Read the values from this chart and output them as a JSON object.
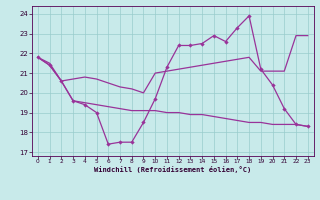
{
  "bg_color": "#c8eaea",
  "line_color": "#993399",
  "grid_color": "#99cccc",
  "xlim": [
    -0.5,
    23.5
  ],
  "ylim": [
    16.8,
    24.4
  ],
  "yticks": [
    17,
    18,
    19,
    20,
    21,
    22,
    23,
    24
  ],
  "xticks": [
    0,
    1,
    2,
    3,
    4,
    5,
    6,
    7,
    8,
    9,
    10,
    11,
    12,
    13,
    14,
    15,
    16,
    17,
    18,
    19,
    20,
    21,
    22,
    23
  ],
  "xlabel": "Windchill (Refroidissement éolien,°C)",
  "line1_x": [
    0,
    1,
    2,
    3,
    4,
    5,
    6,
    7,
    8,
    9,
    10,
    11,
    12,
    13,
    14,
    15,
    16,
    17,
    18,
    19,
    20,
    21,
    22,
    23
  ],
  "line1_y": [
    21.8,
    21.5,
    20.6,
    20.7,
    20.8,
    20.7,
    20.5,
    20.3,
    20.2,
    20.0,
    21.0,
    21.1,
    21.2,
    21.3,
    21.4,
    21.5,
    21.6,
    21.7,
    21.8,
    21.1,
    21.1,
    21.1,
    22.9,
    22.9
  ],
  "line2_x": [
    0,
    1,
    2,
    3,
    4,
    5,
    6,
    7,
    8,
    9,
    10,
    11,
    12,
    13,
    14,
    15,
    16,
    17,
    18,
    19,
    20,
    21,
    22,
    23
  ],
  "line2_y": [
    21.8,
    21.4,
    20.6,
    19.6,
    19.4,
    19.0,
    17.4,
    17.5,
    17.5,
    18.5,
    19.7,
    21.3,
    22.4,
    22.4,
    22.5,
    22.9,
    22.6,
    23.3,
    23.9,
    21.2,
    20.4,
    19.2,
    18.4,
    18.3
  ],
  "line3_x": [
    0,
    1,
    2,
    3,
    4,
    5,
    6,
    7,
    8,
    9,
    10,
    11,
    12,
    13,
    14,
    15,
    16,
    17,
    18,
    19,
    20,
    21,
    22,
    23
  ],
  "line3_y": [
    21.8,
    21.4,
    20.6,
    19.6,
    19.5,
    19.4,
    19.3,
    19.2,
    19.1,
    19.1,
    19.1,
    19.0,
    19.0,
    18.9,
    18.9,
    18.8,
    18.7,
    18.6,
    18.5,
    18.5,
    18.4,
    18.4,
    18.4,
    18.3
  ]
}
